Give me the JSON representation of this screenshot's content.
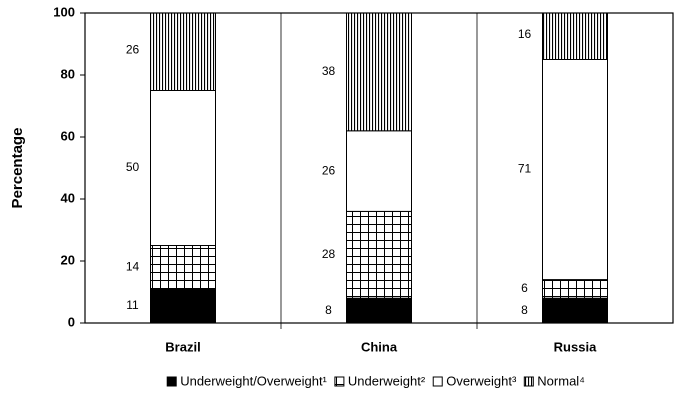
{
  "chart_data": {
    "type": "stacked-bar",
    "ylabel": "Percentage",
    "categories": [
      "Brazil",
      "China",
      "Russia"
    ],
    "series": [
      {
        "name": "Underweight/Overweight¹",
        "color": "#000000",
        "pattern": "solid",
        "values": [
          11,
          8,
          8
        ]
      },
      {
        "name": "Underweight²",
        "color": "#ffffff",
        "pattern": "grid",
        "values": [
          14,
          28,
          6
        ]
      },
      {
        "name": "Overweight³",
        "color": "#ffffff",
        "pattern": "solid",
        "values": [
          50,
          26,
          71
        ]
      },
      {
        "name": "Normal⁴",
        "color": "#ffffff",
        "pattern": "stripes",
        "values": [
          26,
          38,
          16
        ]
      }
    ],
    "ylim": [
      0,
      100
    ],
    "yticks": [
      0,
      20,
      40,
      60,
      80,
      100
    ]
  }
}
